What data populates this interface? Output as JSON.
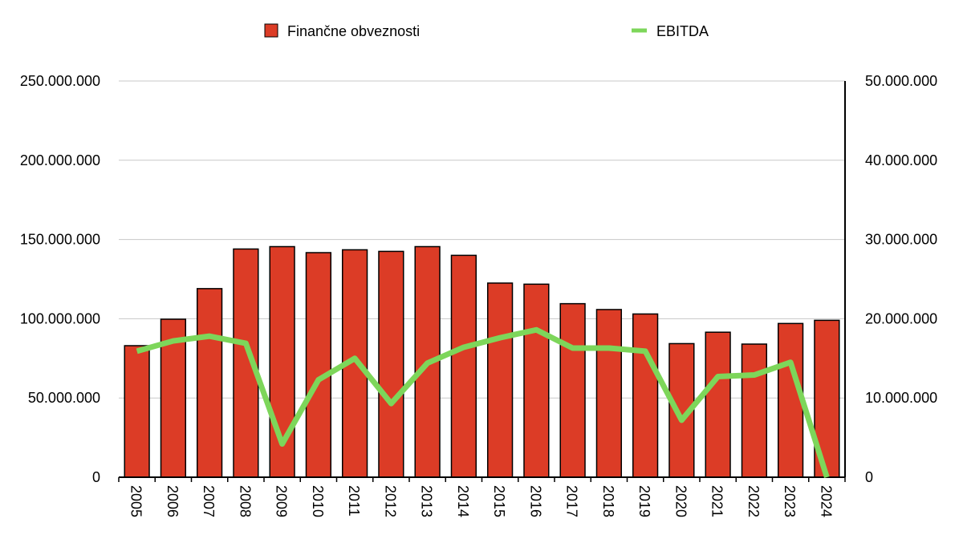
{
  "chart_data": {
    "type": "bar",
    "categories": [
      "2005",
      "2006",
      "2007",
      "2008",
      "2009",
      "2010",
      "2011",
      "2012",
      "2013",
      "2014",
      "2015",
      "2016",
      "2017",
      "2018",
      "2019",
      "2020",
      "2021",
      "2022",
      "2023",
      "2024"
    ],
    "series": [
      {
        "name": "Finančne obveznosti",
        "type": "bar",
        "axis": "left",
        "color": "#dc3c26",
        "values": [
          83000000,
          99700000,
          119000000,
          144000000,
          145500000,
          141700000,
          143500000,
          142500000,
          145500000,
          140000000,
          122500000,
          121800000,
          109500000,
          105800000,
          103000000,
          84300000,
          91500000,
          84000000,
          97000000,
          99000000
        ]
      },
      {
        "name": "EBITDA",
        "type": "line",
        "axis": "right",
        "color": "#7dd65a",
        "values": [
          15900000,
          17200000,
          17800000,
          16900000,
          4200000,
          12300000,
          15000000,
          9300000,
          14400000,
          16400000,
          17600000,
          18600000,
          16300000,
          16300000,
          15900000,
          7200000,
          12700000,
          12900000,
          14500000,
          0
        ]
      }
    ],
    "y_left": {
      "min": 0,
      "max": 250000000,
      "ticks": [
        "0",
        "50.000.000",
        "100.000.000",
        "150.000.000",
        "200.000.000",
        "250.000.000"
      ],
      "tick_values": [
        0,
        50000000,
        100000000,
        150000000,
        200000000,
        250000000
      ]
    },
    "y_right": {
      "min": 0,
      "max": 50000000,
      "ticks": [
        "0",
        "10.000.000",
        "20.000.000",
        "30.000.000",
        "40.000.000",
        "50.000.000"
      ],
      "tick_values": [
        0,
        10000000,
        20000000,
        30000000,
        40000000,
        50000000
      ]
    },
    "grid": true,
    "legend_position": "top",
    "title": "",
    "xlabel": "",
    "ylabel": ""
  }
}
